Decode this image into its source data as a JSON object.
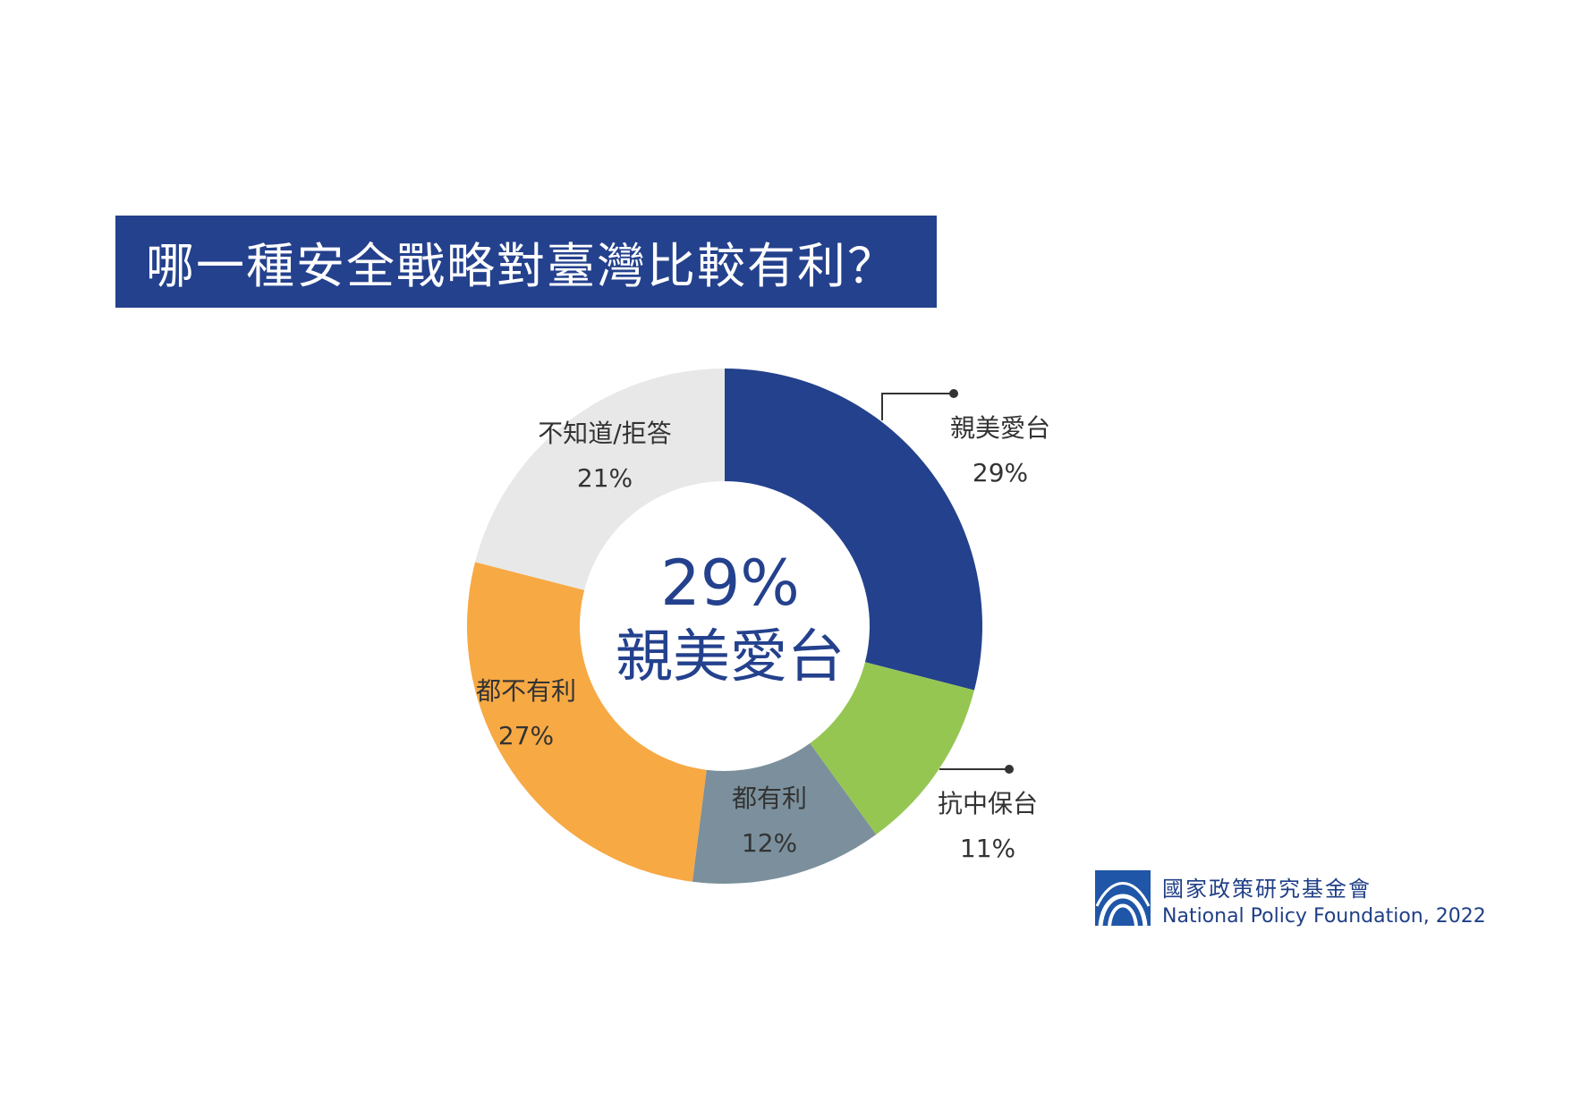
{
  "title": "哪一種安全戰略對臺灣比較有利？",
  "chart_data": {
    "type": "pie",
    "donut": true,
    "categories": [
      "親美愛台",
      "抗中保台",
      "都有利",
      "都不有利",
      "不知道/拒答"
    ],
    "values": [
      29,
      11,
      12,
      27,
      21
    ],
    "value_labels": [
      "29%",
      "11%",
      "12%",
      "27%",
      "21%"
    ],
    "colors": [
      "#24418d",
      "#96c652",
      "#7b909c",
      "#f7a944",
      "#e8e8e8"
    ],
    "center": {
      "value": "29%",
      "label": "親美愛台"
    }
  },
  "colors": {
    "brand_blue": "#24418d",
    "text": "#333333"
  },
  "footer": {
    "org_name": "國家政策研究基金會",
    "org_name_en": "National Policy Foundation, 2022",
    "logo_icon": "npf-logo-icon"
  }
}
